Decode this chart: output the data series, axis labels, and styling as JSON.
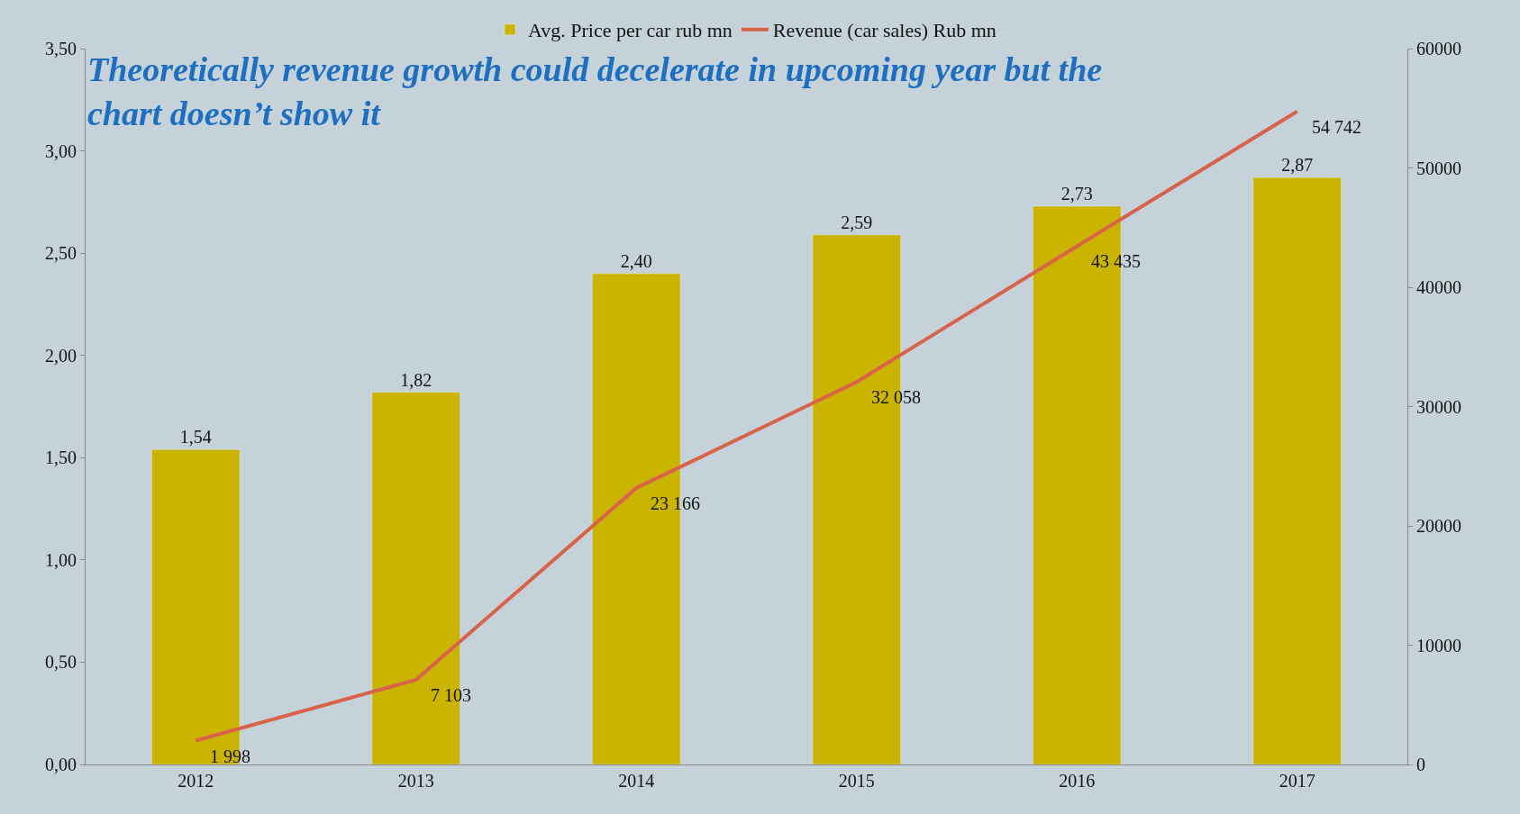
{
  "chart_data": {
    "type": "bar",
    "categories": [
      "2012",
      "2013",
      "2014",
      "2015",
      "2016",
      "2017"
    ],
    "series": [
      {
        "name": "Avg. Price per car rub mn",
        "color": "#cbb400",
        "values": [
          1.54,
          1.82,
          2.4,
          2.59,
          2.73,
          2.87
        ],
        "value_labels": [
          "1,54",
          "1,82",
          "2,40",
          "2,59",
          "2,73",
          "2,87"
        ]
      },
      {
        "name": "Revenue (car sales) Rub mn",
        "type": "line",
        "axis": "y2",
        "color": "#d9634a",
        "values": [
          1998,
          7103,
          23166,
          32058,
          43435,
          54742
        ],
        "value_labels": [
          "1 998",
          "7 103",
          "23 166",
          "32 058",
          "43 435",
          "54 742"
        ]
      }
    ],
    "ylim": [
      0,
      3.5
    ],
    "yticks": [
      {
        "value": 0,
        "label": "0,00"
      },
      {
        "value": 0.5,
        "label": "0,50"
      },
      {
        "value": 1,
        "label": "1,00"
      },
      {
        "value": 1.5,
        "label": "1,50"
      },
      {
        "value": 2,
        "label": "2,00"
      },
      {
        "value": 2.5,
        "label": "2,50"
      },
      {
        "value": 3,
        "label": "3,00"
      },
      {
        "value": 3.5,
        "label": "3,50"
      }
    ],
    "y2lim": [
      0,
      60000
    ],
    "y2ticks": [
      0,
      10000,
      20000,
      30000,
      40000,
      50000,
      60000
    ],
    "annotations": [
      "Theoretically revenue growth could decelerate in upcoming year but the chart doesn’t show it"
    ],
    "legend": "top",
    "grid": false
  }
}
